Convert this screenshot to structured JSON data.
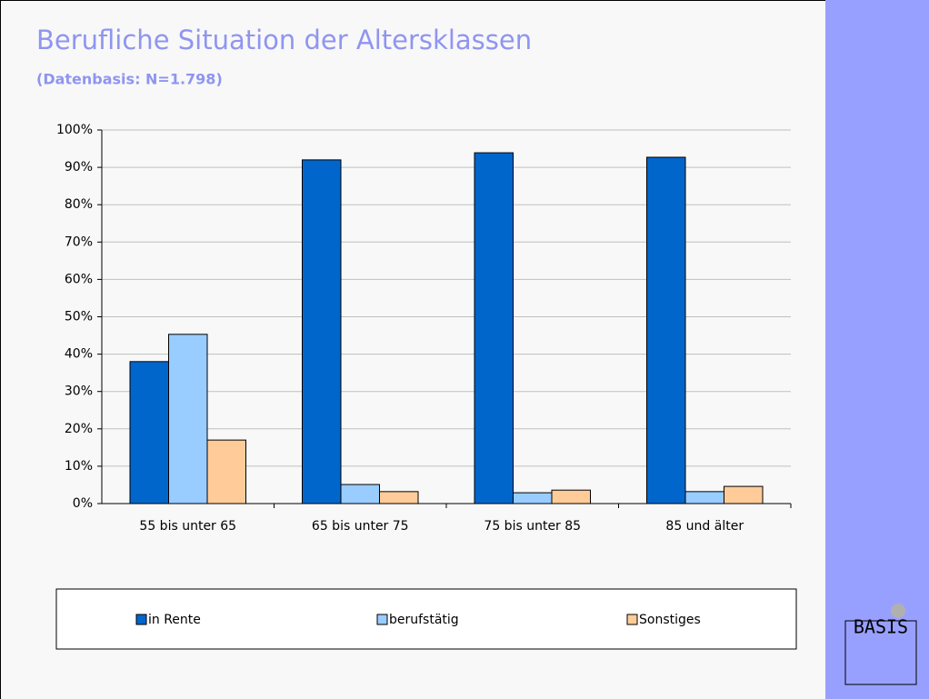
{
  "chart_data": {
    "type": "bar",
    "title": "Berufliche Situation der Altersklassen",
    "subtitle": "(Datenbasis: N=1.798)",
    "categories": [
      "55 bis unter 65",
      "65 bis unter 75",
      "75 bis unter 85",
      "85 und älter"
    ],
    "series": [
      {
        "name": "in Rente",
        "color": "#0066cc",
        "values": [
          38,
          92,
          93.9,
          92.7
        ]
      },
      {
        "name": "berufstätig",
        "color": "#99ccff",
        "values": [
          45.3,
          5.1,
          2.9,
          3.2
        ]
      },
      {
        "name": "Sonstiges",
        "color": "#ffcc99",
        "values": [
          17,
          3.2,
          3.6,
          4.6
        ]
      }
    ],
    "ylim": [
      0,
      100
    ],
    "yticks": [
      {
        "value": 0,
        "label": "0%"
      },
      {
        "value": 10,
        "label": "10%"
      },
      {
        "value": 20,
        "label": "20%"
      },
      {
        "value": 30,
        "label": "30%"
      },
      {
        "value": 40,
        "label": "40%"
      },
      {
        "value": 50,
        "label": "50%"
      },
      {
        "value": 60,
        "label": "60%"
      },
      {
        "value": 70,
        "label": "70%"
      },
      {
        "value": 80,
        "label": "80%"
      },
      {
        "value": 90,
        "label": "90%"
      },
      {
        "value": 100,
        "label": "100%"
      }
    ],
    "grid": true,
    "legend": "bottom"
  },
  "logo": "BASIS"
}
